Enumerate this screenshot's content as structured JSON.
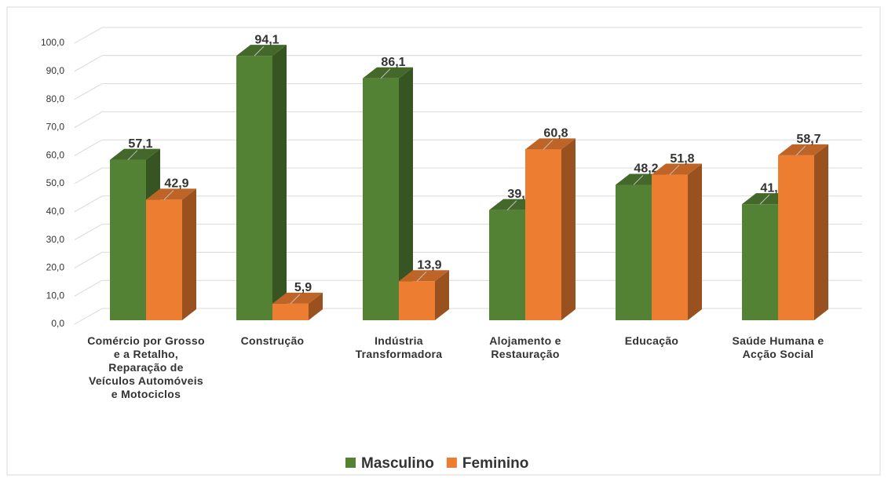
{
  "chart_data": {
    "type": "bar3d",
    "categories": [
      "Comércio por Grosso e a Retalho, Reparação de Veículos Automóveis e Motociclos",
      "Construção",
      "Indústria Transformadora",
      "Alojamento e Restauração",
      "Educação",
      "Saúde Humana e Acção Social"
    ],
    "series": [
      {
        "name": "Masculino",
        "color": "#548235",
        "values": [
          57.1,
          94.1,
          86.1,
          39.2,
          48.2,
          41.3
        ],
        "value_labels": [
          "57,1",
          "94,1",
          "86,1",
          "39,2",
          "48,2",
          "41,3"
        ]
      },
      {
        "name": "Feminino",
        "color": "#ed7d31",
        "values": [
          42.9,
          5.9,
          13.9,
          60.8,
          51.8,
          58.7
        ],
        "value_labels": [
          "42,9",
          "5,9",
          "13,9",
          "60,8",
          "51,8",
          "58,7"
        ]
      }
    ],
    "ylim": [
      0,
      100
    ],
    "yticks": [
      {
        "value": 0,
        "label": "0,0"
      },
      {
        "value": 10,
        "label": "10,0"
      },
      {
        "value": 20,
        "label": "20,0"
      },
      {
        "value": 30,
        "label": "30,0"
      },
      {
        "value": 40,
        "label": "40,0"
      },
      {
        "value": 50,
        "label": "50,0"
      },
      {
        "value": 60,
        "label": "60,0"
      },
      {
        "value": 70,
        "label": "70,0"
      },
      {
        "value": 80,
        "label": "80,0"
      },
      {
        "value": 90,
        "label": "90,0"
      },
      {
        "value": 100,
        "label": "100,0"
      }
    ],
    "grid": true,
    "legend": "bottom"
  }
}
